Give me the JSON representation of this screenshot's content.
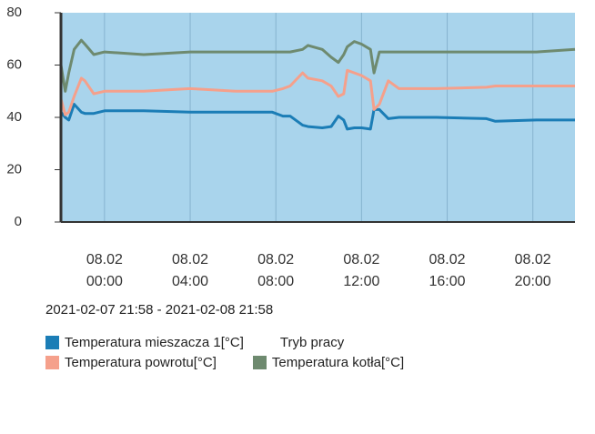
{
  "chart_data": {
    "type": "line",
    "subtitle": "2021-02-07 21:58 - 2021-02-08 21:58",
    "x": [
      "2021-02-07T21:58",
      "2021-02-07T22:10",
      "2021-02-07T22:20",
      "2021-02-07T22:35",
      "2021-02-07T22:55",
      "2021-02-07T23:05",
      "2021-02-07T23:30",
      "2021-02-08T00:00",
      "2021-02-08T01:50",
      "2021-02-08T04:00",
      "2021-02-08T06:10",
      "2021-02-08T07:50",
      "2021-02-08T08:20",
      "2021-02-08T08:40",
      "2021-02-08T09:15",
      "2021-02-08T09:30",
      "2021-02-08T10:10",
      "2021-02-08T10:35",
      "2021-02-08T10:55",
      "2021-02-08T11:10",
      "2021-02-08T11:20",
      "2021-02-08T11:40",
      "2021-02-08T12:00",
      "2021-02-08T12:25",
      "2021-02-08T12:35",
      "2021-02-08T12:50",
      "2021-02-08T13:15",
      "2021-02-08T13:45",
      "2021-02-08T15:30",
      "2021-02-08T17:50",
      "2021-02-08T18:15",
      "2021-02-08T20:10",
      "2021-02-08T21:58"
    ],
    "series": [
      {
        "name": "Temperatura mieszacza 1[°C]",
        "color": "#1b7db6",
        "values": [
          42,
          40,
          39,
          45,
          42,
          41.5,
          41.5,
          42.5,
          42.5,
          42,
          42,
          42,
          40.5,
          40.5,
          37,
          36.5,
          36,
          36.5,
          40.5,
          39,
          35.5,
          36,
          36,
          35.5,
          43,
          43,
          39.5,
          40,
          40,
          39.5,
          38.5,
          39,
          39
        ]
      },
      {
        "name": "Tryb pracy"
      },
      {
        "name": "Temperatura powrotu[°C]",
        "color": "#f5a08b",
        "values": [
          47,
          41,
          42,
          48,
          55,
          54,
          49,
          50,
          50,
          51,
          50,
          50,
          51,
          52,
          57,
          55,
          54,
          52,
          48,
          49,
          58,
          57,
          56,
          54,
          43,
          45,
          54,
          51,
          51,
          51.5,
          52,
          52,
          52
        ]
      },
      {
        "name": "Temperatura kotła[°C]",
        "color": "#6e8a6f",
        "values": [
          60,
          50,
          57,
          66,
          69.5,
          68,
          64,
          65,
          64,
          65,
          65,
          65,
          65,
          65,
          66,
          67.5,
          66,
          63,
          61,
          64,
          67,
          69,
          68,
          66,
          57,
          65,
          65,
          65,
          65,
          65,
          65,
          65,
          66
        ]
      }
    ],
    "xlim": [
      "2021-02-07T21:58",
      "2021-02-08T21:58"
    ],
    "xticks": [
      {
        "value": "2021-02-08T00:00",
        "label": "08.02\n00:00"
      },
      {
        "value": "2021-02-08T04:00",
        "label": "08.02\n04:00"
      },
      {
        "value": "2021-02-08T08:00",
        "label": "08.02\n08:00"
      },
      {
        "value": "2021-02-08T12:00",
        "label": "08.02\n12:00"
      },
      {
        "value": "2021-02-08T16:00",
        "label": "08.02\n16:00"
      },
      {
        "value": "2021-02-08T20:00",
        "label": "08.02\n20:00"
      }
    ],
    "ylim": [
      0,
      80
    ],
    "yticks": [
      0,
      20,
      40,
      60,
      80
    ]
  }
}
